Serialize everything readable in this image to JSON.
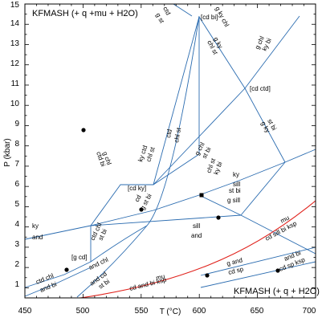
{
  "title_top": "KFMASH  (+ q +mu + H2O)",
  "title_bottom": "KFMASH  (+ q + H2O)",
  "x_axis": {
    "label": "T (°C)",
    "ticks": [
      "450",
      "500",
      "550",
      "600",
      "650",
      "700"
    ],
    "range": [
      450,
      700
    ]
  },
  "y_axis": {
    "label": "P (kbar)",
    "ticks": [
      "1",
      "2",
      "3",
      "4",
      "5",
      "6",
      "7",
      "8",
      "9",
      "10",
      "11",
      "12",
      "13",
      "14",
      "15"
    ],
    "range": [
      0.5,
      15
    ]
  },
  "colors": {
    "reaction_line": "#2b6cb0",
    "muscovite_breakdown": "#e0201a",
    "frame": "#000000"
  },
  "invariant_points": [
    {
      "label": "[g cd]",
      "T": 511,
      "P": 2.1
    },
    {
      "label": "[cd ky]",
      "T": 557,
      "P": 6.0
    },
    {
      "label": "[cd ctd]",
      "T": 646,
      "P": 10.8
    },
    {
      "label": "[cd bi]",
      "T": 600,
      "P": 14.7
    }
  ],
  "labels": {
    "ky_and_left": [
      "ky",
      "and"
    ],
    "ky_sill": [
      "ky",
      "sill"
    ],
    "sill_and": [
      "sill",
      "and"
    ],
    "ctd_chl_st_bi": [
      "ctd chl",
      "st bi"
    ],
    "and_chl": [
      "and chl"
    ],
    "ctd_chl_and_bi": [
      "ctd chl",
      "and bi"
    ],
    "and_cd_st_bi": [
      "and cd",
      "st bi"
    ],
    "cd_g_st_bi": [
      "cd",
      "g st bi"
    ],
    "ky_ctd_chl_st": [
      "ky ctd",
      "chl st"
    ],
    "g_chl_ctd_bi": [
      "g chl",
      "ctd bi"
    ],
    "ctd_chl_st": [
      "ctd",
      "chl st"
    ],
    "g_chl_st_bi": [
      "g chl",
      "st bi"
    ],
    "g_chl_ky_bi": [
      "g chl",
      "ky bi"
    ],
    "chl_st_ky_bi": [
      "chl st",
      "ky bi"
    ],
    "st_bi_g_sill": [
      "st bi",
      "g sill"
    ],
    "st_bi_g_ky": [
      "st bi",
      "g ky"
    ],
    "g_ky_chl_st": [
      "g ky",
      "chl st"
    ],
    "g_ky_chl_top": [
      "g ky chl"
    ],
    "ctd_st_top": [
      "ctd",
      "g st"
    ],
    "mu_cd_sill_bi_ksp": [
      "mu",
      "cd sill bi ksp"
    ],
    "mu_cd_and_bi_ksp": [
      "mu",
      "cd and bi ksp"
    ],
    "g_and_cd_sp": [
      "g and",
      "cd sp"
    ],
    "and_bi_cd_sp_ksp": [
      "and bi",
      "cd sp ksp"
    ]
  }
}
